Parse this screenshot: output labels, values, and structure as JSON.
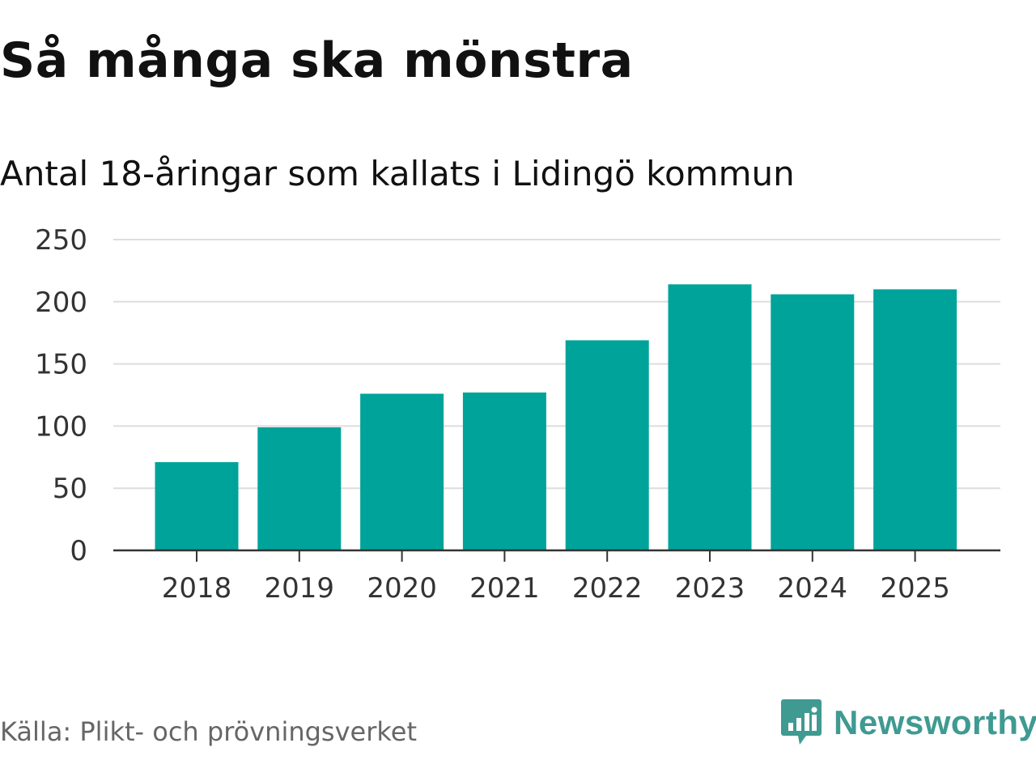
{
  "header": {
    "title": "Så många ska mönstra",
    "subtitle": "Antal 18-åringar som kallats i Lidingö kommun"
  },
  "footer": {
    "source": "Källa: Plikt- och prövningsverket",
    "brand": "Newsworthy",
    "brand_icon": "newsworthy-logo-icon"
  },
  "colors": {
    "bar": "#00a39a",
    "grid": "#dddddd",
    "axis": "#333333",
    "brand": "#3f9a92"
  },
  "chart_data": {
    "type": "bar",
    "title": "Så många ska mönstra",
    "subtitle": "Antal 18-åringar som kallats i Lidingö kommun",
    "xlabel": "",
    "ylabel": "",
    "categories": [
      "2018",
      "2019",
      "2020",
      "2021",
      "2022",
      "2023",
      "2024",
      "2025"
    ],
    "values": [
      71,
      99,
      126,
      127,
      169,
      214,
      206,
      210
    ],
    "ylim": [
      0,
      250
    ],
    "yticks": [
      "0",
      "50",
      "100",
      "150",
      "200",
      "250"
    ],
    "grid": true
  }
}
